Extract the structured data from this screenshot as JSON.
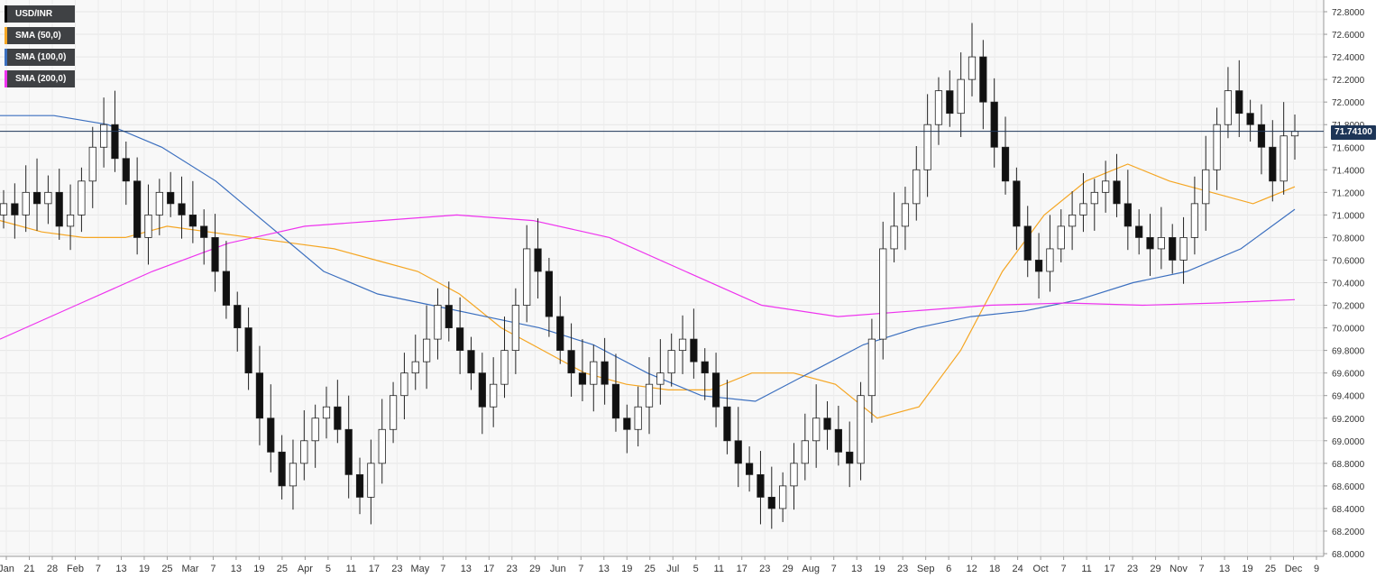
{
  "legend": [
    {
      "label": "USD/INR",
      "color": "#000000"
    },
    {
      "label": "SMA (50,0)",
      "color": "#f5a623"
    },
    {
      "label": "SMA (100,0)",
      "color": "#3b6fbf"
    },
    {
      "label": "SMA (200,0)",
      "color": "#ee33ee"
    }
  ],
  "price_label": "71.74100",
  "chart_data": {
    "type": "candlestick",
    "symbol": "USD/INR",
    "current_price": 71.741,
    "ylim": [
      68.0,
      72.9
    ],
    "y_ticks": [
      "68.0000",
      "68.2000",
      "68.4000",
      "68.6000",
      "68.8000",
      "69.0000",
      "69.2000",
      "69.4000",
      "69.6000",
      "69.8000",
      "70.0000",
      "70.2000",
      "70.4000",
      "70.6000",
      "70.8000",
      "71.0000",
      "71.2000",
      "71.4000",
      "71.6000",
      "71.8000",
      "72.0000",
      "72.2000",
      "72.4000",
      "72.6000",
      "72.8000"
    ],
    "x_ticks": [
      "Jan",
      "21",
      "28",
      "Feb",
      "7",
      "13",
      "19",
      "25",
      "Mar",
      "7",
      "13",
      "19",
      "25",
      "Apr",
      "5",
      "11",
      "17",
      "23",
      "May",
      "7",
      "13",
      "17",
      "23",
      "29",
      "Jun",
      "7",
      "13",
      "19",
      "25",
      "Jul",
      "5",
      "11",
      "17",
      "23",
      "29",
      "Aug",
      "7",
      "13",
      "19",
      "23",
      "Sep",
      "6",
      "12",
      "18",
      "24",
      "Oct",
      "7",
      "11",
      "17",
      "23",
      "29",
      "Nov",
      "7",
      "13",
      "19",
      "25",
      "Dec",
      "9"
    ],
    "grid": true,
    "legend_position": "top-left",
    "close_series": [
      71.1,
      71.0,
      71.2,
      71.1,
      71.2,
      70.9,
      71.0,
      71.3,
      71.6,
      71.8,
      71.5,
      71.3,
      70.8,
      71.0,
      71.2,
      71.1,
      71.0,
      70.9,
      70.8,
      70.5,
      70.2,
      70.0,
      69.6,
      69.2,
      68.9,
      68.6,
      68.8,
      69.0,
      69.2,
      69.3,
      69.1,
      68.7,
      68.5,
      68.8,
      69.1,
      69.4,
      69.6,
      69.7,
      69.9,
      70.2,
      70.0,
      69.8,
      69.6,
      69.3,
      69.5,
      69.8,
      70.2,
      70.7,
      70.5,
      70.1,
      69.8,
      69.6,
      69.5,
      69.7,
      69.5,
      69.2,
      69.1,
      69.3,
      69.5,
      69.6,
      69.8,
      69.9,
      69.7,
      69.6,
      69.3,
      69.0,
      68.8,
      68.7,
      68.5,
      68.4,
      68.6,
      68.8,
      69.0,
      69.2,
      69.1,
      68.9,
      68.8,
      69.4,
      69.9,
      70.7,
      70.9,
      71.1,
      71.4,
      71.8,
      72.1,
      71.9,
      72.2,
      72.4,
      72.0,
      71.6,
      71.3,
      70.9,
      70.6,
      70.5,
      70.7,
      70.9,
      71.0,
      71.1,
      71.2,
      71.3,
      71.1,
      70.9,
      70.8,
      70.7,
      70.8,
      70.6,
      70.8,
      71.1,
      71.4,
      71.8,
      72.1,
      71.9,
      71.8,
      71.6,
      71.3,
      71.7,
      71.74
    ],
    "series": [
      {
        "name": "SMA (50,0)",
        "values": [
          70.95,
          70.85,
          70.8,
          70.8,
          70.9,
          70.85,
          70.8,
          70.75,
          70.7,
          70.6,
          70.5,
          70.3,
          70.0,
          69.8,
          69.6,
          69.5,
          69.45,
          69.45,
          69.6,
          69.6,
          69.5,
          69.2,
          69.3,
          69.8,
          70.5,
          71.0,
          71.3,
          71.45,
          71.3,
          71.2,
          71.1,
          71.25
        ]
      },
      {
        "name": "SMA (100,0)",
        "values": [
          71.88,
          71.88,
          71.8,
          71.6,
          71.3,
          70.9,
          70.5,
          70.3,
          70.2,
          70.1,
          70.0,
          69.85,
          69.6,
          69.4,
          69.35,
          69.6,
          69.85,
          70.0,
          70.1,
          70.15,
          70.25,
          70.4,
          70.5,
          70.7,
          71.05
        ]
      },
      {
        "name": "SMA (200,0)",
        "values": [
          69.9,
          70.2,
          70.5,
          70.75,
          70.9,
          70.95,
          71.0,
          70.95,
          70.8,
          70.5,
          70.2,
          70.1,
          70.15,
          70.2,
          70.22,
          70.2,
          70.22,
          70.25
        ]
      }
    ]
  }
}
